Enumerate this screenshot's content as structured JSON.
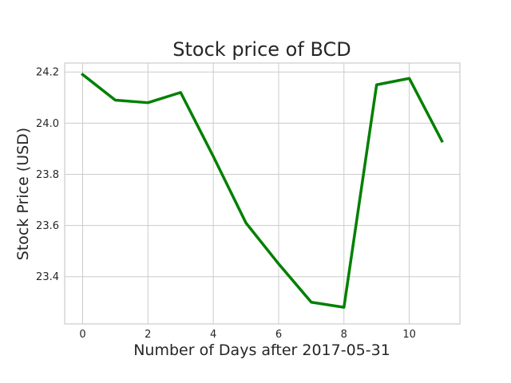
{
  "chart_data": {
    "type": "line",
    "title": "Stock price of BCD",
    "xlabel": "Number of Days after 2017-05-31",
    "ylabel": "Stock Price (USD)",
    "x": [
      0,
      1,
      2,
      3,
      4,
      5,
      6,
      7,
      8,
      9,
      10,
      11
    ],
    "series": [
      {
        "values": [
          24.19,
          24.09,
          24.08,
          24.12,
          23.87,
          23.61,
          23.45,
          23.3,
          23.28,
          24.15,
          24.175,
          23.93
        ],
        "color": "#008000"
      }
    ],
    "xlim": [
      -0.55,
      11.55
    ],
    "ylim": [
      23.215,
      24.235
    ],
    "xticks": [
      0,
      2,
      4,
      6,
      8,
      10
    ],
    "yticks": [
      23.4,
      23.6,
      23.8,
      24.0,
      24.2
    ],
    "yticklabels": [
      "23.4",
      "23.6",
      "23.8",
      "24.0",
      "24.2"
    ],
    "grid": true,
    "legend": "none"
  }
}
